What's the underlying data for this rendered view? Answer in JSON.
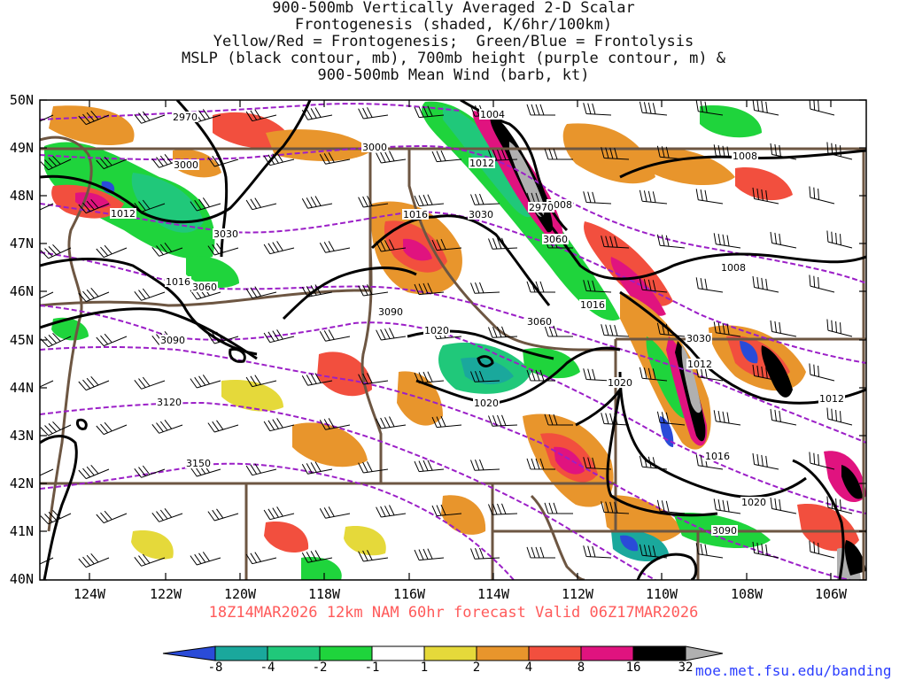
{
  "title_lines": [
    "900-500mb Vertically Averaged 2-D Scalar",
    "Frontogenesis (shaded, K/6hr/100km)",
    "Yellow/Red = Frontogenesis;  Green/Blue = Frontolysis",
    "MSLP (black contour, mb), 700mb height (purple contour, m) &",
    "900-500mb Mean Wind (barb, kt)"
  ],
  "lat_labels": [
    "50N",
    "49N",
    "48N",
    "47N",
    "46N",
    "45N",
    "44N",
    "43N",
    "42N",
    "41N",
    "40N"
  ],
  "lon_labels": [
    "124W",
    "122W",
    "120W",
    "118W",
    "116W",
    "114W",
    "112W",
    "110W",
    "108W",
    "106W"
  ],
  "footer": "18Z14MAR2026 12km NAM 60hr forecast Valid 06Z17MAR2026",
  "colorbar_labels": [
    "-8",
    "-4",
    "-2",
    "-1",
    "1",
    "2",
    "4",
    "8",
    "16",
    "32"
  ],
  "colorbar_colors": [
    "#2a4bd8",
    "#1aa89c",
    "#20c87a",
    "#1fd43c",
    "#ffffff",
    "#e5d93a",
    "#e8952c",
    "#f24f3e",
    "#e0137f",
    "#000000",
    "#b0b0b0"
  ],
  "url": "moe.met.fsu.edu/banding",
  "colors": {
    "mslp": "#000000",
    "height": "#9b1fc7",
    "border": "#6d5642",
    "footer": "#ff5a5a",
    "url": "#2a3dff"
  },
  "mslp_labels": [
    "1004",
    "1008",
    "1008",
    "1008",
    "1012",
    "1012",
    "1012",
    "1012",
    "1016",
    "1016",
    "1016",
    "1016",
    "1020",
    "1020",
    "1020",
    "1020"
  ],
  "height_labels": [
    "2970",
    "2970",
    "3000",
    "3000",
    "3030",
    "3030",
    "3030",
    "3060",
    "3060",
    "3060",
    "3090",
    "3090",
    "3090",
    "3120",
    "3150"
  ]
}
